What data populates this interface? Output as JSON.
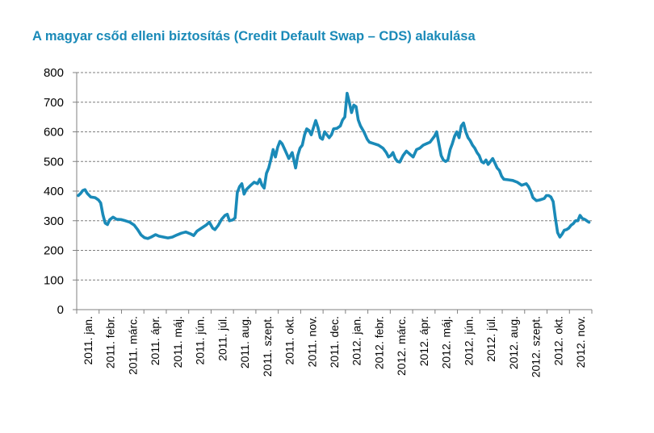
{
  "chart_data": {
    "type": "line",
    "title": "A magyar csőd elleni biztosítás (Credit Default Swap – CDS) alakulása",
    "xlabel": "",
    "ylabel": "",
    "ylim": [
      0,
      800
    ],
    "yticks": [
      0,
      100,
      200,
      300,
      400,
      500,
      600,
      700,
      800
    ],
    "grid": "horizontal-dashed",
    "legend": "none",
    "colors": {
      "line": "#1a8ab8",
      "title": "#1a8ab8",
      "grid": "#7f7f7f",
      "axis": "#808080"
    },
    "categories": [
      "2011. jan.",
      "2011. febr.",
      "2011. márc.",
      "2011. ápr.",
      "2011. máj.",
      "2011. jún.",
      "2011. júl.",
      "2011. aug.",
      "2011. szept.",
      "2011. okt.",
      "2011. nov.",
      "2011. dec.",
      "2012. jan.",
      "2012. febr.",
      "2012. márc.",
      "2012. ápr.",
      "2012. máj.",
      "2012. jún.",
      "2012. júl.",
      "2012. aug.",
      "2012. szept.",
      "2012. okt.",
      "2012. nov."
    ],
    "series": [
      {
        "values": [
          [
            0.0,
            385
          ],
          [
            0.1,
            392
          ],
          [
            0.2,
            402
          ],
          [
            0.3,
            405
          ],
          [
            0.4,
            392
          ],
          [
            0.55,
            380
          ],
          [
            0.75,
            378
          ],
          [
            0.9,
            370
          ],
          [
            1.0,
            360
          ],
          [
            1.1,
            320
          ],
          [
            1.2,
            292
          ],
          [
            1.3,
            287
          ],
          [
            1.4,
            303
          ],
          [
            1.55,
            312
          ],
          [
            1.7,
            305
          ],
          [
            1.9,
            304
          ],
          [
            2.1,
            300
          ],
          [
            2.3,
            295
          ],
          [
            2.5,
            285
          ],
          [
            2.65,
            270
          ],
          [
            2.8,
            252
          ],
          [
            2.95,
            243
          ],
          [
            3.1,
            240
          ],
          [
            3.25,
            245
          ],
          [
            3.45,
            253
          ],
          [
            3.6,
            248
          ],
          [
            3.8,
            245
          ],
          [
            4.0,
            242
          ],
          [
            4.2,
            245
          ],
          [
            4.4,
            252
          ],
          [
            4.6,
            258
          ],
          [
            4.8,
            262
          ],
          [
            5.0,
            256
          ],
          [
            5.15,
            250
          ],
          [
            5.3,
            265
          ],
          [
            5.5,
            275
          ],
          [
            5.7,
            285
          ],
          [
            5.85,
            295
          ],
          [
            6.0,
            275
          ],
          [
            6.1,
            270
          ],
          [
            6.25,
            285
          ],
          [
            6.4,
            305
          ],
          [
            6.55,
            318
          ],
          [
            6.65,
            322
          ],
          [
            6.75,
            300
          ],
          [
            6.9,
            303
          ],
          [
            7.0,
            310
          ],
          [
            7.1,
            395
          ],
          [
            7.2,
            415
          ],
          [
            7.3,
            425
          ],
          [
            7.4,
            390
          ],
          [
            7.5,
            405
          ],
          [
            7.7,
            420
          ],
          [
            7.85,
            430
          ],
          [
            8.0,
            425
          ],
          [
            8.1,
            440
          ],
          [
            8.2,
            420
          ],
          [
            8.3,
            410
          ],
          [
            8.4,
            460
          ],
          [
            8.5,
            478
          ],
          [
            8.6,
            508
          ],
          [
            8.7,
            540
          ],
          [
            8.8,
            515
          ],
          [
            8.9,
            548
          ],
          [
            9.0,
            568
          ],
          [
            9.1,
            560
          ],
          [
            9.25,
            535
          ],
          [
            9.4,
            510
          ],
          [
            9.55,
            530
          ],
          [
            9.7,
            478
          ],
          [
            9.8,
            520
          ],
          [
            9.9,
            545
          ],
          [
            10.0,
            555
          ],
          [
            10.1,
            590
          ],
          [
            10.2,
            610
          ],
          [
            10.3,
            605
          ],
          [
            10.4,
            590
          ],
          [
            10.5,
            615
          ],
          [
            10.6,
            638
          ],
          [
            10.7,
            615
          ],
          [
            10.8,
            580
          ],
          [
            10.9,
            575
          ],
          [
            11.0,
            600
          ],
          [
            11.1,
            590
          ],
          [
            11.2,
            580
          ],
          [
            11.3,
            590
          ],
          [
            11.4,
            610
          ],
          [
            11.55,
            612
          ],
          [
            11.7,
            620
          ],
          [
            11.8,
            640
          ],
          [
            11.9,
            650
          ],
          [
            12.0,
            730
          ],
          [
            12.1,
            700
          ],
          [
            12.2,
            665
          ],
          [
            12.3,
            690
          ],
          [
            12.4,
            685
          ],
          [
            12.5,
            640
          ],
          [
            12.6,
            620
          ],
          [
            12.75,
            600
          ],
          [
            12.9,
            575
          ],
          [
            13.0,
            565
          ],
          [
            13.2,
            560
          ],
          [
            13.4,
            555
          ],
          [
            13.6,
            545
          ],
          [
            13.75,
            530
          ],
          [
            13.85,
            515
          ],
          [
            13.95,
            520
          ],
          [
            14.05,
            530
          ],
          [
            14.15,
            510
          ],
          [
            14.25,
            500
          ],
          [
            14.35,
            498
          ],
          [
            14.5,
            520
          ],
          [
            14.65,
            535
          ],
          [
            14.8,
            525
          ],
          [
            14.95,
            515
          ],
          [
            15.1,
            540
          ],
          [
            15.25,
            545
          ],
          [
            15.4,
            555
          ],
          [
            15.55,
            560
          ],
          [
            15.7,
            565
          ],
          [
            15.8,
            575
          ],
          [
            15.9,
            585
          ],
          [
            16.0,
            600
          ],
          [
            16.1,
            560
          ],
          [
            16.2,
            520
          ],
          [
            16.3,
            505
          ],
          [
            16.4,
            500
          ],
          [
            16.5,
            505
          ],
          [
            16.6,
            540
          ],
          [
            16.7,
            560
          ],
          [
            16.8,
            585
          ],
          [
            16.9,
            600
          ],
          [
            17.0,
            580
          ],
          [
            17.1,
            620
          ],
          [
            17.2,
            630
          ],
          [
            17.3,
            600
          ],
          [
            17.4,
            580
          ],
          [
            17.5,
            570
          ],
          [
            17.6,
            555
          ],
          [
            17.7,
            545
          ],
          [
            17.8,
            530
          ],
          [
            17.9,
            520
          ],
          [
            18.0,
            500
          ],
          [
            18.1,
            495
          ],
          [
            18.2,
            505
          ],
          [
            18.3,
            490
          ],
          [
            18.4,
            500
          ],
          [
            18.5,
            510
          ],
          [
            18.6,
            495
          ],
          [
            18.7,
            478
          ],
          [
            18.8,
            470
          ],
          [
            18.9,
            450
          ],
          [
            19.0,
            440
          ],
          [
            19.2,
            438
          ],
          [
            19.4,
            436
          ],
          [
            19.6,
            430
          ],
          [
            19.8,
            420
          ],
          [
            20.0,
            425
          ],
          [
            20.1,
            415
          ],
          [
            20.2,
            400
          ],
          [
            20.3,
            378
          ],
          [
            20.45,
            368
          ],
          [
            20.6,
            370
          ],
          [
            20.8,
            375
          ],
          [
            20.9,
            385
          ],
          [
            21.0,
            385
          ],
          [
            21.1,
            380
          ],
          [
            21.2,
            365
          ],
          [
            21.3,
            310
          ],
          [
            21.4,
            260
          ],
          [
            21.5,
            245
          ],
          [
            21.6,
            255
          ],
          [
            21.7,
            268
          ],
          [
            21.8,
            270
          ],
          [
            21.9,
            275
          ],
          [
            22.0,
            285
          ],
          [
            22.1,
            290
          ],
          [
            22.2,
            300
          ],
          [
            22.3,
            300
          ],
          [
            22.4,
            318
          ],
          [
            22.5,
            308
          ],
          [
            22.6,
            305
          ],
          [
            22.7,
            300
          ],
          [
            22.8,
            295
          ]
        ]
      }
    ]
  }
}
